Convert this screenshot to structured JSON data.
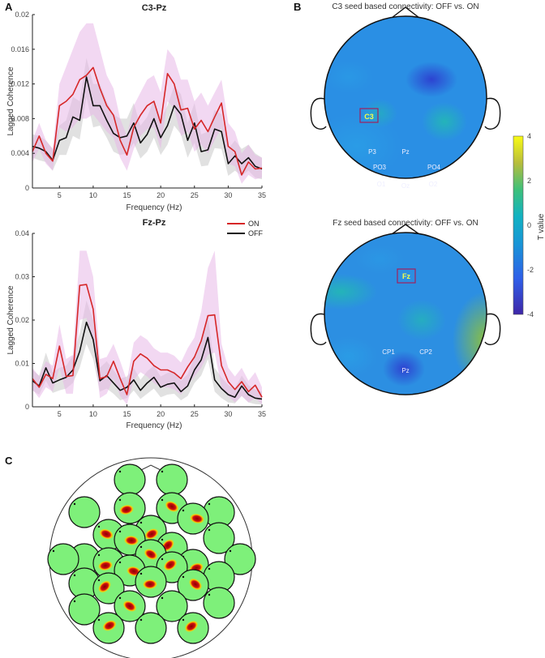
{
  "panels": {
    "A": "A",
    "B": "B",
    "C": "C"
  },
  "chart_data": [
    {
      "type": "line",
      "title": "C3-Pz",
      "xlabel": "Frequency (Hz)",
      "ylabel": "Lagged Coherence",
      "xlim": [
        1,
        35
      ],
      "ylim": [
        0,
        0.02
      ],
      "xticks": [
        "5",
        "10",
        "15",
        "20",
        "25",
        "30",
        "35"
      ],
      "xtick_values": [
        5,
        10,
        15,
        20,
        25,
        30,
        35
      ],
      "yticks": [
        "0",
        "0.004",
        "0.008",
        "0.012",
        "0.016",
        "0.02"
      ],
      "ytick_values": [
        0,
        0.004,
        0.008,
        0.012,
        0.016,
        0.02
      ],
      "x": [
        1,
        2,
        3,
        4,
        5,
        6,
        7,
        8,
        9,
        10,
        11,
        12,
        13,
        14,
        15,
        16,
        17,
        18,
        19,
        20,
        21,
        22,
        23,
        24,
        25,
        26,
        27,
        28,
        29,
        30,
        31,
        32,
        33,
        34,
        35
      ],
      "series": [
        {
          "name": "ON",
          "color": "#d62728",
          "values": [
            0.0042,
            0.006,
            0.004,
            0.0031,
            0.0095,
            0.01,
            0.0108,
            0.0125,
            0.013,
            0.0139,
            0.0115,
            0.0095,
            0.0084,
            0.0055,
            0.0038,
            0.007,
            0.0084,
            0.0095,
            0.01,
            0.0075,
            0.0132,
            0.012,
            0.009,
            0.0092,
            0.0068,
            0.0078,
            0.0065,
            0.0082,
            0.0098,
            0.0048,
            0.0042,
            0.0015,
            0.003,
            0.0022,
            0.0023
          ],
          "band_upper": [
            0.0055,
            0.0075,
            0.0055,
            0.0045,
            0.012,
            0.014,
            0.016,
            0.018,
            0.019,
            0.019,
            0.016,
            0.013,
            0.0115,
            0.008,
            0.006,
            0.0095,
            0.011,
            0.0125,
            0.013,
            0.011,
            0.016,
            0.015,
            0.0125,
            0.0125,
            0.01,
            0.011,
            0.0095,
            0.011,
            0.0125,
            0.0075,
            0.0065,
            0.004,
            0.005,
            0.0038,
            0.0035
          ],
          "band_lower": [
            0.003,
            0.0045,
            0.0028,
            0.002,
            0.007,
            0.0065,
            0.007,
            0.008,
            0.008,
            0.0085,
            0.0075,
            0.0065,
            0.0058,
            0.0035,
            0.002,
            0.0045,
            0.006,
            0.0068,
            0.007,
            0.0045,
            0.01,
            0.0092,
            0.006,
            0.0065,
            0.0042,
            0.005,
            0.004,
            0.0055,
            0.007,
            0.0028,
            0.0025,
            0.0005,
            0.0015,
            0.001,
            0.0012
          ],
          "band_color": "#e8b8e8"
        },
        {
          "name": "OFF",
          "color": "#111111",
          "values": [
            0.0048,
            0.0046,
            0.0042,
            0.0032,
            0.0055,
            0.0058,
            0.0082,
            0.0078,
            0.0128,
            0.0095,
            0.0095,
            0.0078,
            0.0063,
            0.0058,
            0.006,
            0.0075,
            0.0052,
            0.0062,
            0.008,
            0.0058,
            0.0072,
            0.0095,
            0.0085,
            0.0055,
            0.0075,
            0.0042,
            0.0044,
            0.0068,
            0.0065,
            0.0028,
            0.0037,
            0.0028,
            0.0035,
            0.0025,
            0.0022
          ],
          "band_upper": [
            0.0062,
            0.006,
            0.0055,
            0.0045,
            0.0072,
            0.0078,
            0.0105,
            0.01,
            0.015,
            0.012,
            0.012,
            0.01,
            0.0085,
            0.008,
            0.008,
            0.0098,
            0.0072,
            0.0082,
            0.0102,
            0.0078,
            0.0095,
            0.0118,
            0.0108,
            0.0075,
            0.0098,
            0.0062,
            0.0065,
            0.009,
            0.0085,
            0.0045,
            0.0055,
            0.0045,
            0.005,
            0.004,
            0.0035
          ],
          "band_lower": [
            0.0035,
            0.0032,
            0.003,
            0.002,
            0.0038,
            0.0038,
            0.006,
            0.0056,
            0.0105,
            0.007,
            0.0072,
            0.0058,
            0.0042,
            0.0038,
            0.004,
            0.0052,
            0.0034,
            0.0042,
            0.0058,
            0.0038,
            0.005,
            0.0072,
            0.0062,
            0.0035,
            0.0052,
            0.0025,
            0.0026,
            0.0046,
            0.0045,
            0.0014,
            0.002,
            0.0014,
            0.002,
            0.0012,
            0.001
          ],
          "band_color": "#c8c8c8"
        }
      ]
    },
    {
      "type": "line",
      "title": "Fz-Pz",
      "xlabel": "Frequency (Hz)",
      "ylabel": "Lagged Coherence",
      "xlim": [
        1,
        35
      ],
      "ylim": [
        0,
        0.04
      ],
      "xticks": [
        "5",
        "10",
        "15",
        "20",
        "25",
        "30",
        "35"
      ],
      "xtick_values": [
        5,
        10,
        15,
        20,
        25,
        30,
        35
      ],
      "yticks": [
        "0",
        "0.01",
        "0.02",
        "0.03",
        "0.04"
      ],
      "ytick_values": [
        0,
        0.01,
        0.02,
        0.03,
        0.04
      ],
      "legend": [
        "ON",
        "OFF"
      ],
      "x": [
        1,
        2,
        3,
        4,
        5,
        6,
        7,
        8,
        9,
        10,
        11,
        12,
        13,
        14,
        15,
        16,
        17,
        18,
        19,
        20,
        21,
        22,
        23,
        24,
        25,
        26,
        27,
        28,
        29,
        30,
        31,
        32,
        33,
        34,
        35
      ],
      "series": [
        {
          "name": "ON",
          "color": "#d62728",
          "values": [
            0.0065,
            0.0045,
            0.0075,
            0.0065,
            0.014,
            0.007,
            0.0072,
            0.028,
            0.0282,
            0.0225,
            0.0065,
            0.007,
            0.0105,
            0.0065,
            0.0028,
            0.0105,
            0.0122,
            0.0112,
            0.0095,
            0.0085,
            0.0085,
            0.0078,
            0.0065,
            0.0092,
            0.0115,
            0.0152,
            0.021,
            0.0212,
            0.0095,
            0.0058,
            0.004,
            0.0058,
            0.0035,
            0.005,
            0.0022
          ],
          "band_upper": [
            0.009,
            0.007,
            0.0105,
            0.0095,
            0.019,
            0.011,
            0.012,
            0.036,
            0.036,
            0.03,
            0.011,
            0.0115,
            0.0145,
            0.0105,
            0.006,
            0.0148,
            0.0165,
            0.0155,
            0.0135,
            0.0125,
            0.0125,
            0.0118,
            0.0102,
            0.0135,
            0.016,
            0.022,
            0.032,
            0.036,
            0.0145,
            0.009,
            0.007,
            0.009,
            0.006,
            0.008,
            0.0045
          ],
          "band_lower": [
            0.004,
            0.002,
            0.0045,
            0.0035,
            0.009,
            0.003,
            0.003,
            0.02,
            0.0205,
            0.015,
            0.002,
            0.003,
            0.0065,
            0.0025,
            0.0005,
            0.0062,
            0.008,
            0.007,
            0.0055,
            0.0045,
            0.0045,
            0.004,
            0.0028,
            0.005,
            0.007,
            0.009,
            0.012,
            0.0125,
            0.0045,
            0.0025,
            0.001,
            0.0025,
            0.001,
            0.002,
            0.0005
          ],
          "band_color": "#e8b8e8"
        },
        {
          "name": "OFF",
          "color": "#111111",
          "values": [
            0.006,
            0.0048,
            0.009,
            0.0055,
            0.0062,
            0.0068,
            0.0085,
            0.0128,
            0.0195,
            0.0155,
            0.006,
            0.0072,
            0.0055,
            0.0038,
            0.0045,
            0.0062,
            0.0038,
            0.0055,
            0.0068,
            0.0045,
            0.0052,
            0.0055,
            0.0035,
            0.0048,
            0.0085,
            0.0108,
            0.016,
            0.0062,
            0.0042,
            0.0028,
            0.0022,
            0.0048,
            0.0028,
            0.002,
            0.0018
          ],
          "band_upper": [
            0.0085,
            0.0072,
            0.0125,
            0.008,
            0.009,
            0.0095,
            0.0118,
            0.017,
            0.0245,
            0.02,
            0.009,
            0.0105,
            0.0085,
            0.0065,
            0.007,
            0.009,
            0.0062,
            0.0082,
            0.0095,
            0.007,
            0.0078,
            0.0082,
            0.006,
            0.0075,
            0.0115,
            0.0145,
            0.021,
            0.009,
            0.0068,
            0.005,
            0.0042,
            0.0072,
            0.005,
            0.004,
            0.0035
          ],
          "band_lower": [
            0.0038,
            0.0028,
            0.006,
            0.0032,
            0.0038,
            0.0042,
            0.0055,
            0.009,
            0.0145,
            0.011,
            0.0035,
            0.0042,
            0.003,
            0.0015,
            0.002,
            0.0038,
            0.0018,
            0.003,
            0.0042,
            0.0022,
            0.0028,
            0.003,
            0.0015,
            0.0025,
            0.0055,
            0.0072,
            0.011,
            0.0035,
            0.002,
            0.001,
            0.0008,
            0.0025,
            0.001,
            0.0006,
            0.0005
          ],
          "band_color": "#c8c8c8"
        }
      ]
    }
  ],
  "topomaps": [
    {
      "title": "C3 seed based connectivity: OFF vs. ON",
      "seed": "C3",
      "electrodes": [
        "P3",
        "Pz",
        "PO3",
        "PO4",
        "O1",
        "Oz",
        "O2"
      ]
    },
    {
      "title": "Fz seed based connectivity: OFF vs. ON",
      "seed": "Fz",
      "electrodes": [
        "CP1",
        "CP2",
        "Pz"
      ]
    }
  ],
  "colorbar": {
    "label": "T value",
    "ticks": [
      "4",
      "2",
      "0",
      "-2",
      "-4"
    ],
    "range": [
      -4,
      4
    ]
  }
}
